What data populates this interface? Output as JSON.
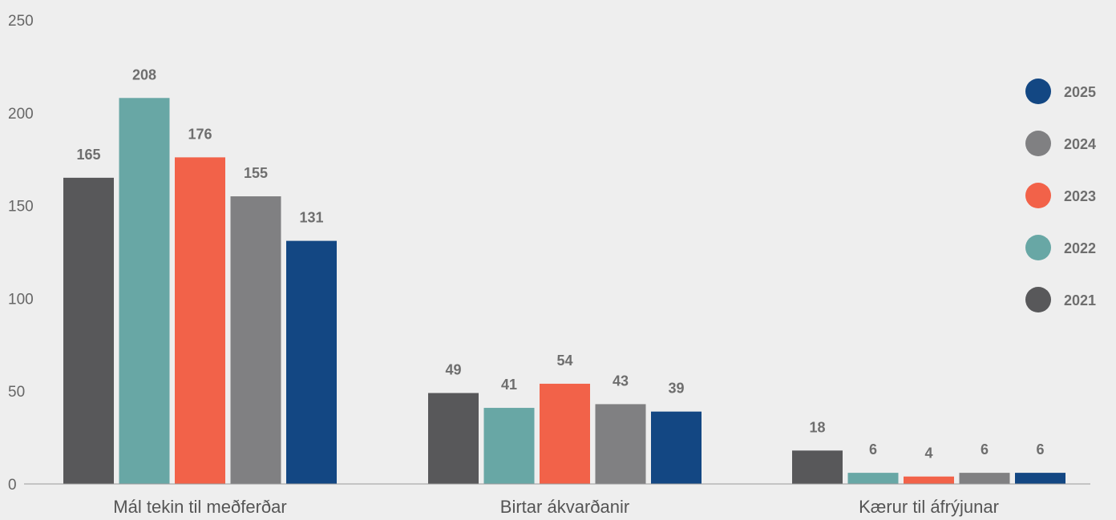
{
  "chart_data": {
    "type": "bar",
    "title": "",
    "xlabel": "",
    "ylabel": "",
    "ylim": [
      0,
      250
    ],
    "yticks": [
      0,
      50,
      100,
      150,
      200,
      250
    ],
    "grid": false,
    "legend_position": "right",
    "categories": [
      "Mál tekin til meðferðar",
      "Birtar ákvarðanir",
      "Kærur til áfrýjunar"
    ],
    "series": [
      {
        "name": "2021",
        "color": "#58585a",
        "values": [
          165,
          49,
          18
        ]
      },
      {
        "name": "2022",
        "color": "#68a7a5",
        "values": [
          208,
          41,
          6
        ]
      },
      {
        "name": "2023",
        "color": "#f26249",
        "values": [
          176,
          54,
          4
        ]
      },
      {
        "name": "2024",
        "color": "#808082",
        "values": [
          155,
          43,
          6
        ]
      },
      {
        "name": "2025",
        "color": "#134783",
        "values": [
          131,
          39,
          6
        ]
      }
    ]
  }
}
